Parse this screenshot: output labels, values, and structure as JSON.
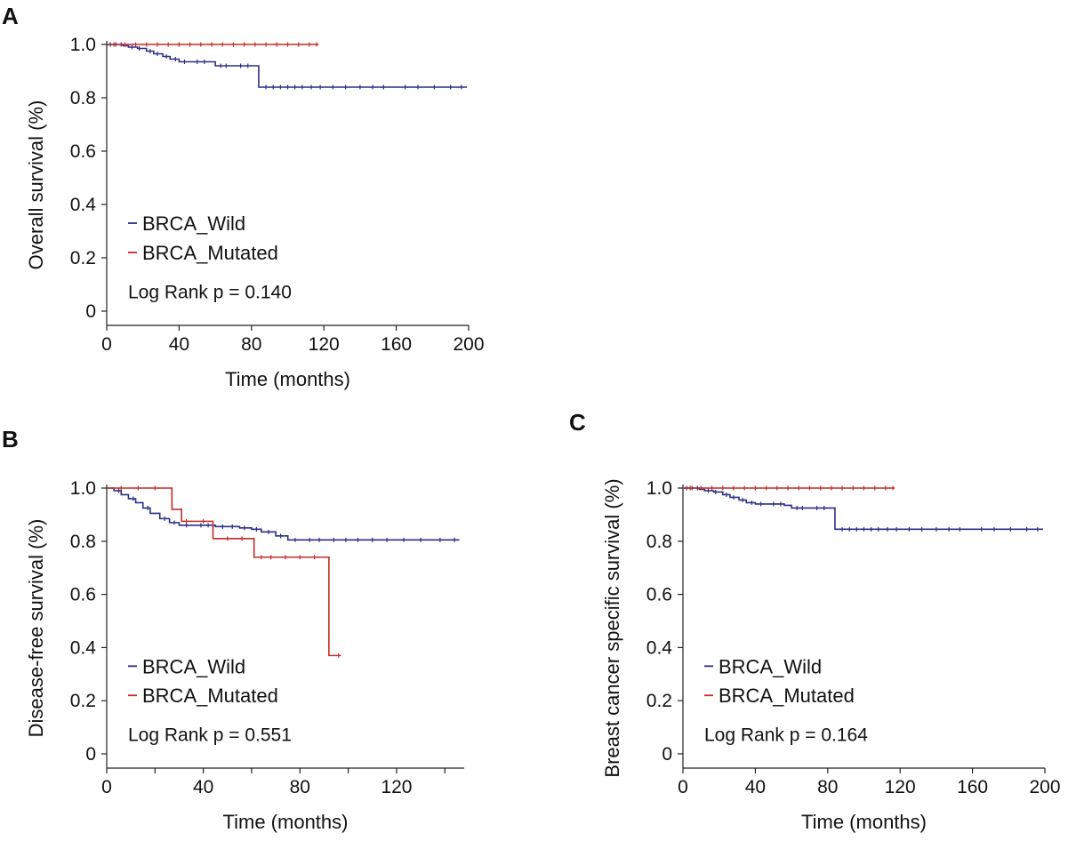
{
  "chart_data": [
    {
      "panel": "A",
      "type": "line",
      "title": "",
      "xlabel": "Time (months)",
      "ylabel": "Overall survival (%)",
      "xlim": [
        0,
        200
      ],
      "ylim": [
        0,
        1.0
      ],
      "xticks": [
        0,
        40,
        80,
        120,
        160,
        200
      ],
      "yticks": [
        0,
        0.2,
        0.4,
        0.6,
        0.8,
        1.0
      ],
      "ytick_labels": [
        "0",
        "0.2",
        "0.4",
        "0.6",
        "0.8",
        "1.0"
      ],
      "grid": false,
      "legend_position": "bottom-left",
      "annotation": "Log Rank p = 0.140",
      "series": [
        {
          "name": "BRCA_Wild",
          "color": "#2b2f86",
          "x": [
            0,
            9,
            12,
            17,
            22,
            26,
            31,
            35,
            40,
            47,
            56,
            60,
            70,
            81,
            84,
            90,
            120,
            160,
            199
          ],
          "y": [
            1.0,
            0.995,
            0.99,
            0.985,
            0.975,
            0.965,
            0.955,
            0.945,
            0.935,
            0.935,
            0.935,
            0.92,
            0.92,
            0.92,
            0.84,
            0.84,
            0.84,
            0.84,
            0.84
          ],
          "censor_x": [
            2,
            5,
            8,
            14,
            18,
            24,
            28,
            33,
            38,
            43,
            50,
            54,
            63,
            66,
            74,
            78,
            88,
            92,
            96,
            100,
            104,
            108,
            113,
            118,
            125,
            132,
            140,
            147,
            153,
            165,
            172,
            181,
            190,
            196
          ]
        },
        {
          "name": "BRCA_Mutated",
          "color": "#c42b26",
          "x": [
            0,
            117
          ],
          "y": [
            1.0,
            1.0
          ],
          "censor_x": [
            4,
            10,
            16,
            22,
            28,
            34,
            40,
            46,
            52,
            58,
            64,
            70,
            76,
            82,
            88,
            94,
            100,
            106,
            112,
            116
          ]
        }
      ]
    },
    {
      "panel": "B",
      "type": "line",
      "title": "",
      "xlabel": "Time (months)",
      "ylabel": "Disease-free survival (%)",
      "xlim": [
        0,
        148
      ],
      "ylim": [
        0,
        1.0
      ],
      "xticks": [
        0,
        40,
        80,
        120
      ],
      "xminorticks": [
        20,
        60,
        100,
        140
      ],
      "yticks": [
        0,
        0.2,
        0.4,
        0.6,
        0.8,
        1.0
      ],
      "ytick_labels": [
        "0",
        "0.2",
        "0.4",
        "0.6",
        "0.8",
        "1.0"
      ],
      "grid": false,
      "legend_position": "bottom-left",
      "annotation": "Log Rank p = 0.551",
      "series": [
        {
          "name": "BRCA_Wild",
          "color": "#2b2f86",
          "x": [
            0,
            3,
            6,
            9,
            12,
            15,
            18,
            22,
            26,
            30,
            36,
            45,
            55,
            60,
            64,
            70,
            75,
            90,
            120,
            146
          ],
          "y": [
            1.0,
            0.99,
            0.975,
            0.96,
            0.945,
            0.925,
            0.905,
            0.885,
            0.87,
            0.86,
            0.86,
            0.855,
            0.85,
            0.845,
            0.835,
            0.82,
            0.805,
            0.805,
            0.805,
            0.805
          ],
          "censor_x": [
            5,
            11,
            17,
            24,
            28,
            33,
            39,
            42,
            48,
            52,
            57,
            62,
            67,
            72,
            78,
            84,
            88,
            94,
            99,
            104,
            110,
            116,
            123,
            130,
            138,
            144
          ]
        },
        {
          "name": "BRCA_Mutated",
          "color": "#c42b26",
          "x": [
            0,
            27,
            31,
            36,
            44,
            61,
            70,
            92,
            97
          ],
          "y": [
            1.0,
            0.92,
            0.875,
            0.875,
            0.81,
            0.74,
            0.74,
            0.37,
            0.37
          ],
          "censor_x": [
            6,
            13,
            20,
            33,
            40,
            50,
            56,
            64,
            68,
            74,
            80,
            86,
            96
          ]
        }
      ]
    },
    {
      "panel": "C",
      "type": "line",
      "title": "",
      "xlabel": "Time (months)",
      "ylabel": "Breast cancer specific survival (%)",
      "xlim": [
        0,
        200
      ],
      "ylim": [
        0,
        1.0
      ],
      "xticks": [
        0,
        40,
        80,
        120,
        160,
        200
      ],
      "yticks": [
        0,
        0.2,
        0.4,
        0.6,
        0.8,
        1.0
      ],
      "ytick_labels": [
        "0",
        "0.2",
        "0.4",
        "0.6",
        "0.8",
        "1.0"
      ],
      "grid": false,
      "legend_position": "bottom-left",
      "annotation": "Log Rank p = 0.164",
      "series": [
        {
          "name": "BRCA_Wild",
          "color": "#2b2f86",
          "x": [
            0,
            9,
            12,
            17,
            22,
            26,
            31,
            35,
            40,
            47,
            56,
            60,
            70,
            80,
            84,
            90,
            120,
            160,
            199
          ],
          "y": [
            1.0,
            0.995,
            0.99,
            0.985,
            0.975,
            0.965,
            0.955,
            0.945,
            0.94,
            0.94,
            0.935,
            0.925,
            0.925,
            0.925,
            0.845,
            0.845,
            0.845,
            0.845,
            0.845
          ],
          "censor_x": [
            2,
            5,
            8,
            14,
            18,
            24,
            28,
            33,
            38,
            43,
            50,
            54,
            63,
            66,
            74,
            78,
            88,
            92,
            96,
            100,
            104,
            108,
            113,
            118,
            125,
            132,
            140,
            147,
            153,
            165,
            172,
            181,
            190,
            196
          ]
        },
        {
          "name": "BRCA_Mutated",
          "color": "#c42b26",
          "x": [
            0,
            117
          ],
          "y": [
            1.0,
            1.0
          ],
          "censor_x": [
            4,
            10,
            16,
            22,
            28,
            34,
            40,
            46,
            52,
            58,
            64,
            70,
            76,
            82,
            88,
            94,
            100,
            106,
            112,
            116
          ]
        }
      ]
    }
  ]
}
